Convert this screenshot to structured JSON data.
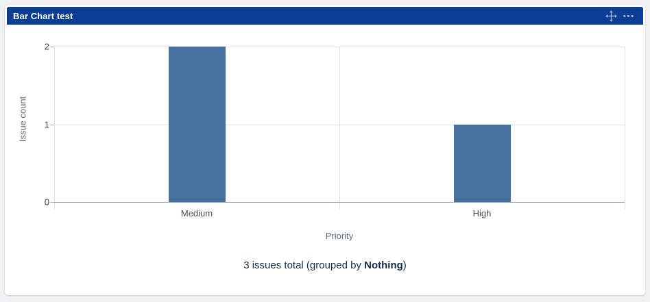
{
  "page": {
    "background_color": "#f0f1f4"
  },
  "gadget": {
    "title": "Bar Chart test",
    "header_color": "#0c3e96",
    "header_icons": [
      "move-icon",
      "more-menu-icon"
    ]
  },
  "chart_data": {
    "type": "bar",
    "categories": [
      "Medium",
      "High"
    ],
    "values": [
      2,
      1
    ],
    "title": "",
    "xlabel": "Priority",
    "ylabel": "Issue count",
    "ylim": [
      0,
      2
    ],
    "yticks": [
      0,
      1,
      2
    ],
    "grid": true,
    "legend": false,
    "bar_color": "#46719f",
    "gridline_color": "#e4e6e9",
    "axis_line_color": "#9fa5ad"
  },
  "footer": {
    "text_before": "3 issues total (grouped by ",
    "bold_text": "Nothing",
    "text_after": ")"
  }
}
